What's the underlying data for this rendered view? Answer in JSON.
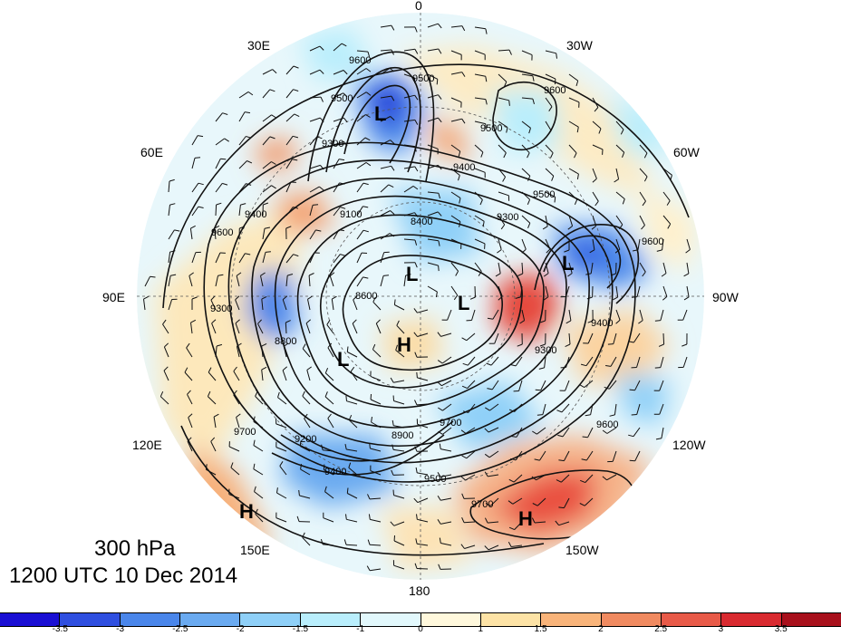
{
  "map": {
    "level": "300 hPa",
    "valid_time": "1200 UTC 10 Dec 2014",
    "longitude_labels": [
      {
        "text": "0",
        "key": "top"
      },
      {
        "text": "30E",
        "key": "upper-left"
      },
      {
        "text": "30W",
        "key": "upper-right"
      },
      {
        "text": "60E",
        "key": "left-upper"
      },
      {
        "text": "60W",
        "key": "right-upper"
      },
      {
        "text": "90E",
        "key": "left"
      },
      {
        "text": "90W",
        "key": "right"
      },
      {
        "text": "120E",
        "key": "left-lower"
      },
      {
        "text": "120W",
        "key": "right-lower"
      },
      {
        "text": "150E",
        "key": "lower-left"
      },
      {
        "text": "150W",
        "key": "lower-right"
      },
      {
        "text": "180",
        "key": "bottom"
      }
    ],
    "contour_labels": [
      "9600",
      "9500",
      "9300",
      "9400",
      "9100",
      "9300",
      "8400",
      "9500",
      "9400",
      "9300",
      "9600",
      "8600",
      "8800",
      "9200",
      "9700",
      "8900",
      "9700",
      "9500",
      "9400",
      "9700",
      "9600",
      "9500",
      "9300",
      "9600",
      "9600",
      "9400",
      "9500"
    ],
    "centers": [
      "L",
      "L",
      "L",
      "L",
      "L",
      "H",
      "H",
      "H"
    ]
  },
  "colorbar": {
    "colors": [
      "#1a0fd4",
      "#2f4fe0",
      "#4a86ea",
      "#6aaaf0",
      "#8fd0f8",
      "#b9eefc",
      "#e2f8fc",
      "#fff8dc",
      "#fde3a6",
      "#f9b47a",
      "#f08a60",
      "#e85a48",
      "#d92a30",
      "#a8101c"
    ],
    "tick_labels": [
      "-3.5",
      "-3",
      "-2.5",
      "-2",
      "-1.5",
      "-1",
      "0",
      "1",
      "1.5",
      "2",
      "2.5",
      "3",
      "3.5"
    ]
  }
}
